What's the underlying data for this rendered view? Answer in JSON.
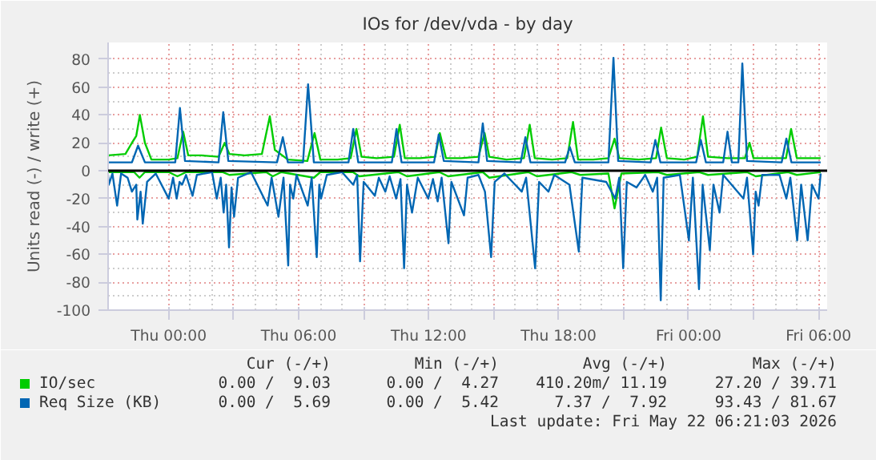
{
  "chart_data": {
    "type": "line",
    "title": "IOs for /dev/vda - by day",
    "ylabel": "Units read (-) / write (+)",
    "xlim": [
      "2026-05-20T21:12",
      "2026-05-22T06:24"
    ],
    "ylim": [
      -100,
      92
    ],
    "xticks": [
      {
        "value": "2026-05-21T00:00",
        "label": "Thu 00:00"
      },
      {
        "value": "2026-05-21T03:00",
        "label": null
      },
      {
        "value": "2026-05-21T06:00",
        "label": "Thu 06:00"
      },
      {
        "value": "2026-05-21T09:00",
        "label": null
      },
      {
        "value": "2026-05-21T12:00",
        "label": "Thu 12:00"
      },
      {
        "value": "2026-05-21T15:00",
        "label": null
      },
      {
        "value": "2026-05-21T18:00",
        "label": "Thu 18:00"
      },
      {
        "value": "2026-05-21T21:00",
        "label": null
      },
      {
        "value": "2026-05-22T00:00",
        "label": "Fri 00:00"
      },
      {
        "value": "2026-05-22T03:00",
        "label": null
      },
      {
        "value": "2026-05-22T06:00",
        "label": "Fri 06:00"
      }
    ],
    "yticks": [
      -100,
      -80,
      -60,
      -40,
      -20,
      0,
      20,
      40,
      60,
      80
    ],
    "grid": true,
    "legend": "bottom",
    "series": [
      {
        "name": "IO/sec",
        "color": "#00cc00",
        "x": [
          "2026-05-20T21:12",
          "2026-05-20T22:00",
          "2026-05-20T22:18",
          "2026-05-20T22:30",
          "2026-05-20T22:40",
          "2026-05-20T22:54",
          "2026-05-20T23:12",
          "2026-05-21T00:00",
          "2026-05-21T00:24",
          "2026-05-21T00:40",
          "2026-05-21T00:54",
          "2026-05-21T01:30",
          "2026-05-21T02:18",
          "2026-05-21T02:35",
          "2026-05-21T02:48",
          "2026-05-21T03:30",
          "2026-05-21T04:18",
          "2026-05-21T04:40",
          "2026-05-21T04:54",
          "2026-05-21T05:30",
          "2026-05-21T06:24",
          "2026-05-21T06:44",
          "2026-05-21T07:00",
          "2026-05-21T07:48",
          "2026-05-21T08:24",
          "2026-05-21T08:40",
          "2026-05-21T08:54",
          "2026-05-21T09:36",
          "2026-05-21T10:24",
          "2026-05-21T10:40",
          "2026-05-21T10:54",
          "2026-05-21T11:36",
          "2026-05-21T12:18",
          "2026-05-21T12:31",
          "2026-05-21T12:48",
          "2026-05-21T13:30",
          "2026-05-21T14:18",
          "2026-05-21T14:35",
          "2026-05-21T14:48",
          "2026-05-21T15:36",
          "2026-05-21T16:24",
          "2026-05-21T16:40",
          "2026-05-21T16:54",
          "2026-05-21T17:42",
          "2026-05-21T18:24",
          "2026-05-21T18:40",
          "2026-05-21T18:54",
          "2026-05-21T19:36",
          "2026-05-21T20:18",
          "2026-05-21T20:35",
          "2026-05-21T20:48",
          "2026-05-21T21:42",
          "2026-05-21T22:30",
          "2026-05-21T22:44",
          "2026-05-21T23:00",
          "2026-05-21T23:48",
          "2026-05-22T00:24",
          "2026-05-22T00:40",
          "2026-05-22T00:54",
          "2026-05-22T01:48",
          "2026-05-22T02:36",
          "2026-05-22T02:49",
          "2026-05-22T03:00",
          "2026-05-22T03:54",
          "2026-05-22T04:30",
          "2026-05-22T04:44",
          "2026-05-22T05:00",
          "2026-05-22T05:36",
          "2026-05-22T06:06"
        ],
        "values": [
          11,
          12,
          20,
          25,
          40,
          20,
          8,
          8,
          9,
          28,
          11,
          11,
          10,
          20,
          12,
          11,
          12,
          39,
          15,
          8,
          7,
          27,
          8,
          8,
          9,
          30,
          10,
          9,
          10,
          33,
          9,
          9,
          10,
          27,
          9,
          9,
          10,
          27,
          10,
          8,
          9,
          33,
          9,
          8,
          9,
          35,
          8,
          8,
          9,
          23,
          9,
          8,
          9,
          31,
          9,
          8,
          10,
          39,
          10,
          9,
          9,
          20,
          9,
          9,
          9,
          30,
          9,
          9,
          9
        ]
      },
      {
        "color": "#00cc00",
        "x": [
          "2026-05-20T21:12",
          "2026-05-20T22:24",
          "2026-05-20T22:39",
          "2026-05-20T22:54",
          "2026-05-21T00:00",
          "2026-05-21T00:24",
          "2026-05-21T00:48",
          "2026-05-21T02:30",
          "2026-05-21T02:48",
          "2026-05-21T04:30",
          "2026-05-21T04:48",
          "2026-05-21T05:12",
          "2026-05-21T06:42",
          "2026-05-21T07:00",
          "2026-05-21T08:30",
          "2026-05-21T08:48",
          "2026-05-21T10:36",
          "2026-05-21T11:00",
          "2026-05-21T12:30",
          "2026-05-21T12:54",
          "2026-05-21T14:30",
          "2026-05-21T14:48",
          "2026-05-21T16:36",
          "2026-05-21T17:00",
          "2026-05-21T18:36",
          "2026-05-21T19:00",
          "2026-05-21T20:18",
          "2026-05-21T20:35",
          "2026-05-21T20:54",
          "2026-05-21T22:36",
          "2026-05-21T23:00",
          "2026-05-22T00:30",
          "2026-05-22T00:54",
          "2026-05-22T02:42",
          "2026-05-22T03:06",
          "2026-05-22T04:36",
          "2026-05-22T05:00",
          "2026-05-22T06:06"
        ],
        "values": [
          -1,
          -1,
          -5,
          -1,
          -1,
          -4,
          -1,
          -1,
          -3,
          -1,
          -4,
          -1,
          -5,
          -1,
          -1,
          -4,
          -1,
          -4,
          -1,
          -4,
          -1,
          -5,
          -1,
          -4,
          -1,
          -3,
          -2,
          -27,
          -2,
          -1,
          -3,
          -1,
          -3,
          -1,
          -4,
          -1,
          -3,
          -1
        ]
      },
      {
        "name": "Req Size (KB)",
        "color": "#0066b3",
        "x": [
          "2026-05-20T21:12",
          "2026-05-20T22:18",
          "2026-05-20T22:35",
          "2026-05-20T22:54",
          "2026-05-21T00:18",
          "2026-05-21T00:31",
          "2026-05-21T00:45",
          "2026-05-21T02:18",
          "2026-05-21T02:31",
          "2026-05-21T02:45",
          "2026-05-21T05:00",
          "2026-05-21T05:16",
          "2026-05-21T05:30",
          "2026-05-21T06:12",
          "2026-05-21T06:26",
          "2026-05-21T06:42",
          "2026-05-21T08:18",
          "2026-05-21T08:31",
          "2026-05-21T08:45",
          "2026-05-21T10:18",
          "2026-05-21T10:31",
          "2026-05-21T10:45",
          "2026-05-21T12:15",
          "2026-05-21T12:28",
          "2026-05-21T12:42",
          "2026-05-21T14:18",
          "2026-05-21T14:30",
          "2026-05-21T14:42",
          "2026-05-21T16:15",
          "2026-05-21T16:28",
          "2026-05-21T16:42",
          "2026-05-21T18:18",
          "2026-05-21T18:31",
          "2026-05-21T18:45",
          "2026-05-21T20:18",
          "2026-05-21T20:32",
          "2026-05-21T20:45",
          "2026-05-21T22:15",
          "2026-05-21T22:28",
          "2026-05-21T22:42",
          "2026-05-22T00:21",
          "2026-05-22T00:34",
          "2026-05-22T00:48",
          "2026-05-22T01:36",
          "2026-05-22T01:48",
          "2026-05-22T02:00",
          "2026-05-22T02:18",
          "2026-05-22T02:29",
          "2026-05-22T02:42",
          "2026-05-22T04:18",
          "2026-05-22T04:31",
          "2026-05-22T04:45",
          "2026-05-22T06:06"
        ],
        "values": [
          6,
          6,
          18,
          6,
          6,
          45,
          7,
          6,
          42,
          7,
          6,
          24,
          6,
          6,
          62,
          6,
          6,
          30,
          6,
          6,
          30,
          6,
          6,
          26,
          7,
          6,
          34,
          7,
          6,
          24,
          6,
          6,
          17,
          6,
          6,
          81,
          7,
          6,
          22,
          6,
          6,
          22,
          6,
          6,
          28,
          6,
          6,
          77,
          7,
          6,
          23,
          6,
          6
        ]
      },
      {
        "color": "#0066b3",
        "x": [
          "2026-05-20T21:12",
          "2026-05-20T21:14",
          "2026-05-20T21:24",
          "2026-05-20T21:37",
          "2026-05-20T21:48",
          "2026-05-20T22:06",
          "2026-05-20T22:18",
          "2026-05-20T22:30",
          "2026-05-20T22:33",
          "2026-05-20T22:42",
          "2026-05-20T22:48",
          "2026-05-20T23:00",
          "2026-05-20T23:24",
          "2026-05-21T00:00",
          "2026-05-21T00:12",
          "2026-05-21T00:22",
          "2026-05-21T00:30",
          "2026-05-21T00:37",
          "2026-05-21T00:48",
          "2026-05-21T01:06",
          "2026-05-21T01:18",
          "2026-05-21T02:00",
          "2026-05-21T02:13",
          "2026-05-21T02:24",
          "2026-05-21T02:32",
          "2026-05-21T02:39",
          "2026-05-21T02:47",
          "2026-05-21T02:54",
          "2026-05-21T03:01",
          "2026-05-21T03:12",
          "2026-05-21T03:48",
          "2026-05-21T04:34",
          "2026-05-21T04:45",
          "2026-05-21T05:04",
          "2026-05-21T05:18",
          "2026-05-21T05:31",
          "2026-05-21T05:36",
          "2026-05-21T05:45",
          "2026-05-21T05:54",
          "2026-05-21T06:25",
          "2026-05-21T06:36",
          "2026-05-21T06:50",
          "2026-05-21T06:57",
          "2026-05-21T07:02",
          "2026-05-21T07:18",
          "2026-05-21T08:00",
          "2026-05-21T08:31",
          "2026-05-21T08:42",
          "2026-05-21T08:50",
          "2026-05-21T09:00",
          "2026-05-21T09:31",
          "2026-05-21T09:42",
          "2026-05-21T10:00",
          "2026-05-21T10:12",
          "2026-05-21T10:30",
          "2026-05-21T10:42",
          "2026-05-21T10:52",
          "2026-05-21T11:00",
          "2026-05-21T11:14",
          "2026-05-21T11:30",
          "2026-05-21T11:59",
          "2026-05-21T12:12",
          "2026-05-21T12:25",
          "2026-05-21T12:36",
          "2026-05-21T12:55",
          "2026-05-21T13:03",
          "2026-05-21T13:38",
          "2026-05-21T13:48",
          "2026-05-21T14:18",
          "2026-05-21T14:36",
          "2026-05-21T14:53",
          "2026-05-21T15:03",
          "2026-05-21T15:30",
          "2026-05-21T16:18",
          "2026-05-21T16:30",
          "2026-05-21T16:55",
          "2026-05-21T17:06",
          "2026-05-21T17:32",
          "2026-05-21T17:48",
          "2026-05-21T18:30",
          "2026-05-21T18:56",
          "2026-05-21T19:06",
          "2026-05-21T20:12",
          "2026-05-21T20:37",
          "2026-05-21T20:48",
          "2026-05-21T20:59",
          "2026-05-21T21:09",
          "2026-05-21T21:36",
          "2026-05-21T22:00",
          "2026-05-21T22:21",
          "2026-05-21T22:33",
          "2026-05-21T22:43",
          "2026-05-21T22:51",
          "2026-05-21T23:36",
          "2026-05-22T00:01",
          "2026-05-22T00:12",
          "2026-05-22T00:29",
          "2026-05-22T00:39",
          "2026-05-22T00:59",
          "2026-05-22T01:09",
          "2026-05-22T01:26",
          "2026-05-22T01:36",
          "2026-05-22T02:32",
          "2026-05-22T02:42",
          "2026-05-22T02:59",
          "2026-05-22T03:06",
          "2026-05-22T03:14",
          "2026-05-22T03:24",
          "2026-05-22T04:12",
          "2026-05-22T04:31",
          "2026-05-22T04:42",
          "2026-05-22T05:01",
          "2026-05-22T05:12",
          "2026-05-22T05:30",
          "2026-05-22T05:42",
          "2026-05-22T06:00",
          "2026-05-22T06:06"
        ],
        "values": [
          -3,
          -10,
          -2,
          -25,
          -2,
          -5,
          -15,
          -10,
          -35,
          -15,
          -38,
          -8,
          -2,
          -20,
          -5,
          -20,
          -8,
          -10,
          -3,
          -18,
          -3,
          -1,
          -20,
          -5,
          -30,
          -10,
          -55,
          -12,
          -33,
          -5,
          -1,
          -25,
          -5,
          -33,
          -5,
          -68,
          -10,
          -20,
          -3,
          -25,
          -5,
          -62,
          -10,
          -20,
          -3,
          -1,
          -10,
          -3,
          -65,
          -8,
          -18,
          -5,
          -15,
          -4,
          -20,
          -6,
          -70,
          -10,
          -30,
          -5,
          -20,
          -6,
          -22,
          -5,
          -52,
          -8,
          -32,
          -5,
          -3,
          -15,
          -62,
          -8,
          -2,
          -15,
          -5,
          -70,
          -8,
          -15,
          -3,
          -10,
          -58,
          -5,
          -8,
          -20,
          -5,
          -70,
          -8,
          -12,
          -3,
          -15,
          -5,
          -93,
          -5,
          -3,
          -50,
          -5,
          -85,
          -10,
          -57,
          -10,
          -30,
          -3,
          -20,
          -5,
          -60,
          -15,
          -25,
          -3,
          -3,
          -20,
          -5,
          -50,
          -10,
          -50,
          -10,
          -20,
          -2
        ]
      }
    ],
    "annotations": [
      "Cur (-/+)",
      "Min (-/+)",
      "Avg (-/+)",
      "Max (-/+)",
      "0.00 /  9.03",
      "0.00 /  4.27",
      "410.20m/ 11.19",
      "27.20 / 39.71",
      "0.00 /  5.69",
      "0.00 /  5.42",
      "7.37 /  7.92",
      "93.43 / 81.67",
      "Last update: Fri May 22 06:21:03 2026"
    ]
  }
}
